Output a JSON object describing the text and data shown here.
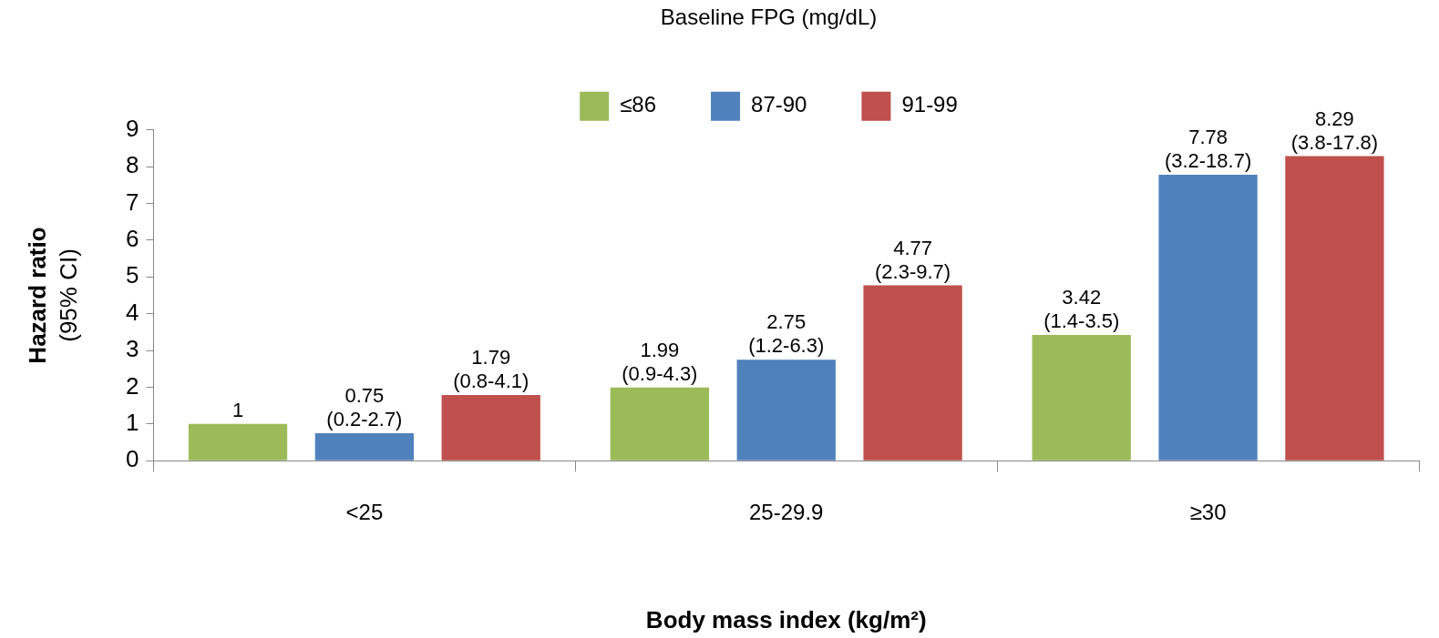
{
  "chart_data": {
    "type": "bar",
    "xlabel": "Body mass index (kg/m²)",
    "ylabel": "Hazard ratio\n(95% CI)",
    "legend_title": "Baseline FPG (mg/dL)",
    "legend": "top",
    "categories": [
      "<25",
      "25-29.9",
      "≥30"
    ],
    "series": [
      {
        "name": "≤86",
        "color": "#9bbb59",
        "values": [
          1,
          1.99,
          3.42
        ],
        "value_labels": [
          "1",
          "1.99\n(0.9-4.3)",
          "3.42\n(1.4-3.5)"
        ]
      },
      {
        "name": "87-90",
        "color": "#4f81bd",
        "values": [
          0.75,
          2.75,
          7.78
        ],
        "value_labels": [
          "0.75\n(0.2-2.7)",
          "2.75\n(1.2-6.3)",
          "7.78\n(3.2-18.7)"
        ]
      },
      {
        "name": "91-99",
        "color": "#c0504d",
        "values": [
          1.79,
          4.77,
          8.29
        ],
        "value_labels": [
          "1.79\n(0.8-4.1)",
          "4.77\n(2.3-9.7)",
          "8.29\n(3.8-17.8)"
        ]
      }
    ],
    "ylim": [
      0,
      9
    ],
    "yticks": [
      0,
      1,
      2,
      3,
      4,
      5,
      6,
      7,
      8,
      9
    ],
    "grid": false
  }
}
